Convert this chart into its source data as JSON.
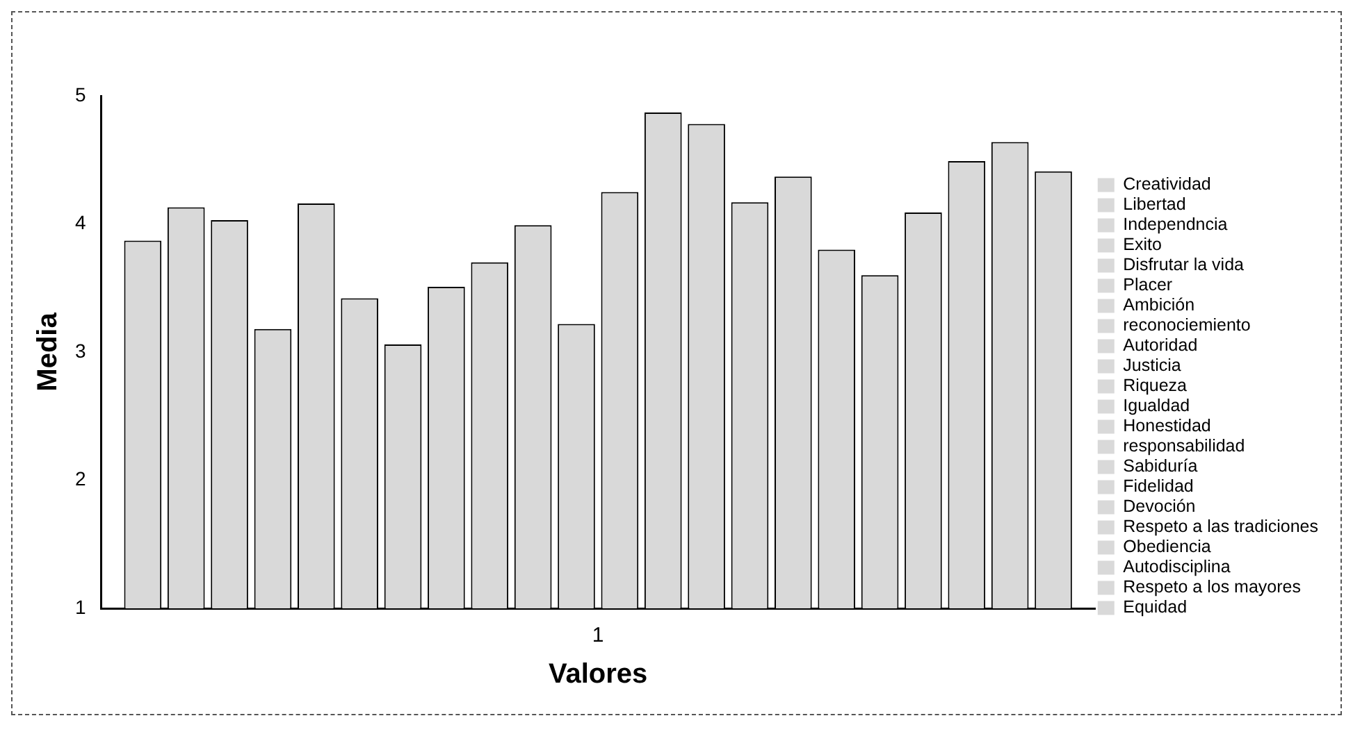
{
  "chart_data": {
    "type": "bar",
    "xlabel": "Valores",
    "ylabel": "Media",
    "categories": [
      "1"
    ],
    "ylim": [
      1,
      5
    ],
    "yticks": [
      1,
      2,
      3,
      4,
      5
    ],
    "grid": false,
    "legend": "right",
    "series": [
      {
        "name": "Creatividad",
        "color": "#d9d9d9",
        "values": [
          3.87
        ]
      },
      {
        "name": "Libertad",
        "color": "#d9d9d9",
        "values": [
          4.13
        ]
      },
      {
        "name": "Independncia",
        "color": "#d9d9d9",
        "values": [
          4.03
        ]
      },
      {
        "name": "Exito",
        "color": "#d9d9d9",
        "values": [
          3.18
        ]
      },
      {
        "name": "Disfrutar la vida",
        "color": "#d9d9d9",
        "values": [
          4.16
        ]
      },
      {
        "name": "Placer",
        "color": "#d9d9d9",
        "values": [
          3.42
        ]
      },
      {
        "name": "Ambición",
        "color": "#d9d9d9",
        "values": [
          3.06
        ]
      },
      {
        "name": "reconociemiento",
        "color": "#d9d9d9",
        "values": [
          3.51
        ]
      },
      {
        "name": "Autoridad",
        "color": "#d9d9d9",
        "values": [
          3.7
        ]
      },
      {
        "name": "Justicia",
        "color": "#d9d9d9",
        "values": [
          3.99
        ]
      },
      {
        "name": "Riqueza",
        "color": "#d9d9d9",
        "values": [
          3.22
        ]
      },
      {
        "name": "Igualdad",
        "color": "#d9d9d9",
        "values": [
          4.25
        ]
      },
      {
        "name": "Honestidad",
        "color": "#d9d9d9",
        "values": [
          4.87
        ]
      },
      {
        "name": "responsabilidad",
        "color": "#d9d9d9",
        "values": [
          4.78
        ]
      },
      {
        "name": "Sabiduría",
        "color": "#d9d9d9",
        "values": [
          4.17
        ]
      },
      {
        "name": "Fidelidad",
        "color": "#d9d9d9",
        "values": [
          4.37
        ]
      },
      {
        "name": "Devoción",
        "color": "#d9d9d9",
        "values": [
          3.8
        ]
      },
      {
        "name": "Respeto a las tradiciones",
        "color": "#d9d9d9",
        "values": [
          3.6
        ]
      },
      {
        "name": "Obediencia",
        "color": "#d9d9d9",
        "values": [
          4.09
        ]
      },
      {
        "name": "Autodisciplina",
        "color": "#d9d9d9",
        "values": [
          4.49
        ]
      },
      {
        "name": "Respeto a los mayores",
        "color": "#d9d9d9",
        "values": [
          4.64
        ]
      },
      {
        "name": "Equidad",
        "color": "#d9d9d9",
        "values": [
          4.41
        ]
      }
    ]
  }
}
